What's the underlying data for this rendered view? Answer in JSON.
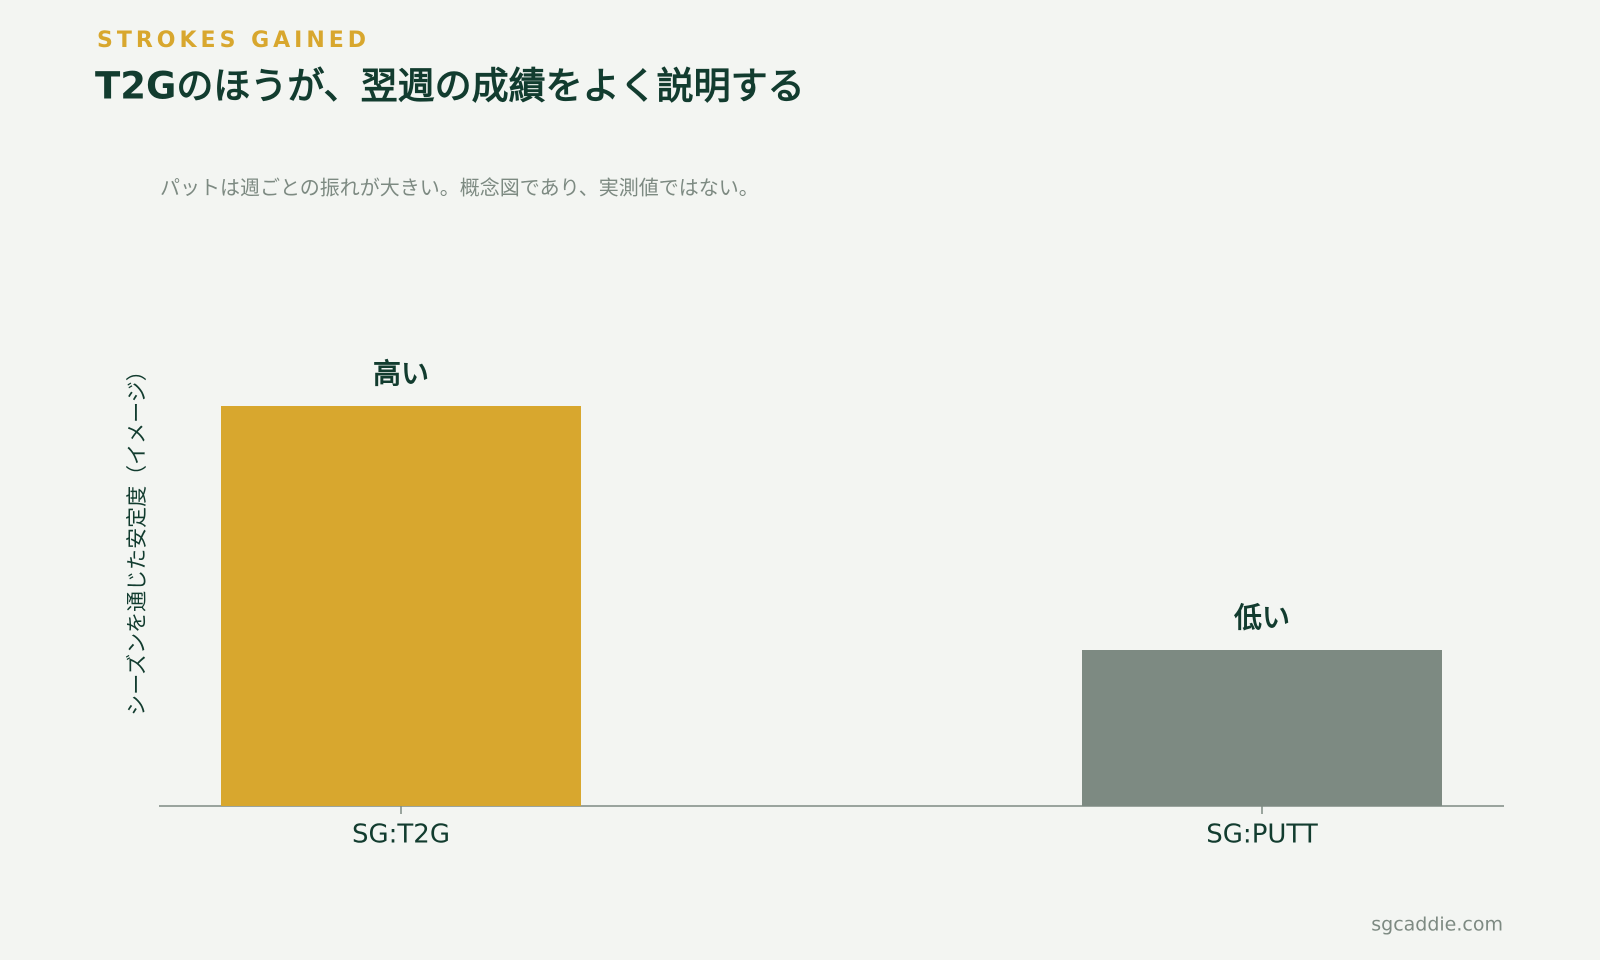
{
  "chart_data": {
    "type": "bar",
    "kicker": "STROKES GAINED",
    "title": "T2Gのほうが、翌週の成績をよく説明する",
    "subtitle": "パットは週ごとの振れが大きい。概念図であり、実測値ではない。",
    "y_label": "シーズンを通じた安定度（イメージ）",
    "categories": [
      "SG:T2G",
      "SG:PUTT"
    ],
    "values": [
      100,
      39
    ],
    "value_labels": [
      "高い",
      "低い"
    ],
    "colors": [
      "#d8a72e",
      "#7d8a82"
    ],
    "ylim": [
      0,
      100
    ],
    "footer": "sgcaddie.com"
  }
}
